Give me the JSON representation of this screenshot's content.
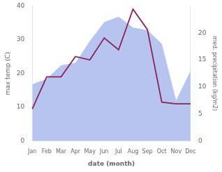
{
  "chart_data": {
    "type": "line",
    "xlabel": "date (month)",
    "ylabel": "max temp (C)",
    "y2label": "med. precipitation (kg/m2)",
    "categories": [
      "Jan",
      "Feb",
      "Mar",
      "Apr",
      "May",
      "Jun",
      "Jul",
      "Aug",
      "Sep",
      "Oct",
      "Nov",
      "Dec"
    ],
    "series": [
      {
        "type": "area",
        "axis": "y2",
        "color": "#b8c4f0",
        "values": [
          10.5,
          11.5,
          14.0,
          14.5,
          18.5,
          22.0,
          23.0,
          21.0,
          20.5,
          18.0,
          7.5,
          13.0
        ]
      },
      {
        "type": "line",
        "color": "#8B2252",
        "values": [
          9.5,
          19.0,
          19.0,
          25.0,
          24.0,
          30.5,
          27.0,
          39.0,
          33.0,
          11.5,
          11.0,
          11.0
        ]
      }
    ],
    "ylim": [
      0,
      40
    ],
    "yticks": [
      0,
      10,
      20,
      30,
      40
    ],
    "y2lim": [
      0,
      25
    ],
    "y2ticks": [
      0,
      5,
      10,
      15,
      20
    ],
    "grid": false
  }
}
